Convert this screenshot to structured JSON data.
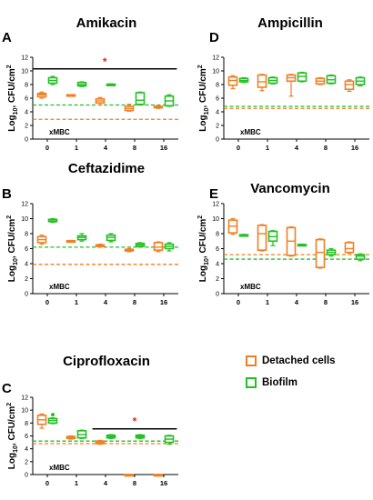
{
  "figure": {
    "colors": {
      "detached": "#f07f22",
      "biofilm": "#22c022",
      "significance": "#e32626",
      "axis": "#000000"
    },
    "legend": [
      {
        "label": "Detached cells",
        "color": "#f07f22"
      },
      {
        "label": "Biofilm",
        "color": "#22c022"
      }
    ]
  },
  "chart_data": [
    {
      "panel": "A",
      "title": "Amikacin",
      "type": "box",
      "ylabel": "Log10, CFU/cm2",
      "xlabel_inside": "xMBC",
      "categories": [
        "0",
        "1",
        "4",
        "8",
        "16"
      ],
      "ylim": [
        0,
        12
      ],
      "yticks": [
        0,
        2,
        4,
        6,
        8,
        10,
        12
      ],
      "grid": false,
      "series": [
        {
          "name": "Detached cells",
          "boxes": [
            [
              6.0,
              6.2,
              6.5,
              6.7,
              6.9
            ],
            [
              6.3,
              6.3,
              6.4,
              6.5,
              6.5
            ],
            [
              5.0,
              5.3,
              5.6,
              5.9,
              6.1
            ],
            [
              4.1,
              4.2,
              4.5,
              4.8,
              5.1
            ],
            [
              4.5,
              4.6,
              4.7,
              4.8,
              4.9
            ]
          ]
        },
        {
          "name": "Biofilm",
          "boxes": [
            [
              8.0,
              8.2,
              8.6,
              9.0,
              9.2
            ],
            [
              7.7,
              7.8,
              8.0,
              8.3,
              8.4
            ],
            [
              7.9,
              7.95,
              8.0,
              8.05,
              8.1
            ],
            [
              5.0,
              5.1,
              5.7,
              6.8,
              6.9
            ],
            [
              4.8,
              4.9,
              5.6,
              6.3,
              6.5
            ]
          ]
        }
      ],
      "reference_lines": [
        {
          "series": "Biofilm",
          "y": 5.0
        },
        {
          "series": "Detached cells",
          "y": 2.9
        }
      ],
      "significance": {
        "from": "0",
        "to": "16",
        "y": 10.3,
        "marker": "*"
      }
    },
    {
      "panel": "B",
      "title": "Ceftazidime",
      "type": "box",
      "ylabel": "Log10, CFU/cm2",
      "xlabel_inside": "xMBC",
      "categories": [
        "0",
        "1",
        "4",
        "8",
        "16"
      ],
      "ylim": [
        0,
        12
      ],
      "yticks": [
        0,
        2,
        4,
        6,
        8,
        10,
        12
      ],
      "grid": false,
      "series": [
        {
          "name": "Detached cells",
          "boxes": [
            [
              6.6,
              6.8,
              7.2,
              7.6,
              7.8
            ],
            [
              6.9,
              6.95,
              7.0,
              7.05,
              7.1
            ],
            [
              6.2,
              6.3,
              6.4,
              6.5,
              6.6
            ],
            [
              5.6,
              5.7,
              5.8,
              5.9,
              6.0
            ],
            [
              5.6,
              5.8,
              6.2,
              6.8,
              6.9
            ]
          ]
        },
        {
          "name": "Biofilm",
          "boxes": [
            [
              9.5,
              9.6,
              9.7,
              9.9,
              10.0
            ],
            [
              7.0,
              7.2,
              7.5,
              7.7,
              8.0
            ],
            [
              6.9,
              7.1,
              7.5,
              7.8,
              8.0
            ],
            [
              6.2,
              6.3,
              6.5,
              6.7,
              6.8
            ],
            [
              5.7,
              6.0,
              6.3,
              6.6,
              6.8
            ]
          ]
        }
      ],
      "reference_lines": [
        {
          "series": "Biofilm",
          "y": 6.2
        },
        {
          "series": "Detached cells",
          "y": 3.9
        }
      ]
    },
    {
      "panel": "C",
      "title": "Ciprofloxacin",
      "type": "box",
      "ylabel": "Log10, CFU/cm2",
      "xlabel_inside": "xMBC",
      "categories": [
        "0",
        "1",
        "4",
        "8",
        "16"
      ],
      "ylim": [
        0,
        12
      ],
      "yticks": [
        0,
        2,
        4,
        6,
        8,
        10,
        12
      ],
      "grid": false,
      "series": [
        {
          "name": "Detached cells",
          "boxes": [
            [
              7.2,
              7.8,
              8.5,
              9.2,
              9.4
            ],
            [
              5.5,
              5.6,
              5.8,
              5.9,
              6.0
            ],
            [
              4.7,
              4.8,
              5.0,
              5.2,
              5.3
            ],
            [
              0,
              0,
              0,
              0,
              0
            ],
            [
              0,
              0,
              0,
              0,
              0
            ]
          ]
        },
        {
          "name": "Biofilm",
          "boxes": [
            [
              7.9,
              8.0,
              8.4,
              8.7,
              8.8
            ],
            [
              5.6,
              5.7,
              6.2,
              6.8,
              6.9
            ],
            [
              5.6,
              5.7,
              5.9,
              6.1,
              6.2
            ],
            [
              5.6,
              5.7,
              5.9,
              6.1,
              6.2
            ],
            [
              4.7,
              5.0,
              5.5,
              6.0,
              6.1
            ]
          ]
        }
      ],
      "outliers": [
        {
          "series": "Biofilm",
          "category": "0",
          "y": 9.3
        }
      ],
      "reference_lines": [
        {
          "series": "Biofilm",
          "y": 5.2
        },
        {
          "series": "Detached cells",
          "y": 4.8
        }
      ],
      "significance": {
        "from": "4",
        "to": "16",
        "y": 7.1,
        "marker": "*"
      }
    },
    {
      "panel": "D",
      "title": "Ampicillin",
      "type": "box",
      "ylabel": "Log10, CFU/cm2",
      "xlabel_inside": "xMBC",
      "categories": [
        "0",
        "1",
        "4",
        "8",
        "16"
      ],
      "ylim": [
        0,
        12
      ],
      "yticks": [
        0,
        2,
        4,
        6,
        8,
        10,
        12
      ],
      "grid": false,
      "series": [
        {
          "name": "Detached cells",
          "boxes": [
            [
              7.4,
              7.9,
              8.6,
              9.1,
              9.3
            ],
            [
              7.1,
              7.6,
              8.4,
              9.4,
              9.5
            ],
            [
              6.3,
              8.5,
              9.0,
              9.4,
              9.5
            ],
            [
              8.0,
              8.1,
              8.5,
              8.9,
              9.0
            ],
            [
              7.0,
              7.3,
              8.0,
              8.5,
              8.7
            ]
          ]
        },
        {
          "name": "Biofilm",
          "boxes": [
            [
              8.3,
              8.4,
              8.6,
              8.9,
              9.0
            ],
            [
              8.1,
              8.2,
              8.6,
              9.0,
              9.1
            ],
            [
              8.4,
              8.5,
              9.2,
              9.7,
              9.8
            ],
            [
              8.1,
              8.2,
              8.7,
              9.3,
              9.4
            ],
            [
              7.8,
              8.0,
              8.5,
              9.0,
              9.1
            ]
          ]
        }
      ],
      "reference_lines": [
        {
          "series": "Biofilm",
          "y": 4.8
        },
        {
          "series": "Detached cells",
          "y": 4.5
        }
      ]
    },
    {
      "panel": "E",
      "title": "Vancomycin",
      "type": "box",
      "ylabel": "Log10, CFU/cm2",
      "xlabel_inside": "xMBC",
      "categories": [
        "0",
        "1",
        "4",
        "8",
        "16"
      ],
      "ylim": [
        0,
        12
      ],
      "yticks": [
        0,
        2,
        4,
        6,
        8,
        10,
        12
      ],
      "grid": false,
      "series": [
        {
          "name": "Detached cells",
          "boxes": [
            [
              7.9,
              8.1,
              9.0,
              9.8,
              10.0
            ],
            [
              5.7,
              5.8,
              8.0,
              9.1,
              9.2
            ],
            [
              5.0,
              5.1,
              7.0,
              8.8,
              8.9
            ],
            [
              3.4,
              3.5,
              5.5,
              7.2,
              7.3
            ],
            [
              5.4,
              5.5,
              6.0,
              6.8,
              6.9
            ]
          ]
        },
        {
          "name": "Biofilm",
          "boxes": [
            [
              7.7,
              7.75,
              7.8,
              7.85,
              7.9
            ],
            [
              6.4,
              7.0,
              7.6,
              8.3,
              8.4
            ],
            [
              6.4,
              6.45,
              6.5,
              6.55,
              6.6
            ],
            [
              5.0,
              5.2,
              5.5,
              5.8,
              6.0
            ],
            [
              4.4,
              4.6,
              5.0,
              5.2,
              5.3
            ]
          ]
        }
      ],
      "reference_lines": [
        {
          "series": "Detached cells",
          "y": 5.2
        },
        {
          "series": "Biofilm",
          "y": 4.6
        }
      ]
    }
  ]
}
